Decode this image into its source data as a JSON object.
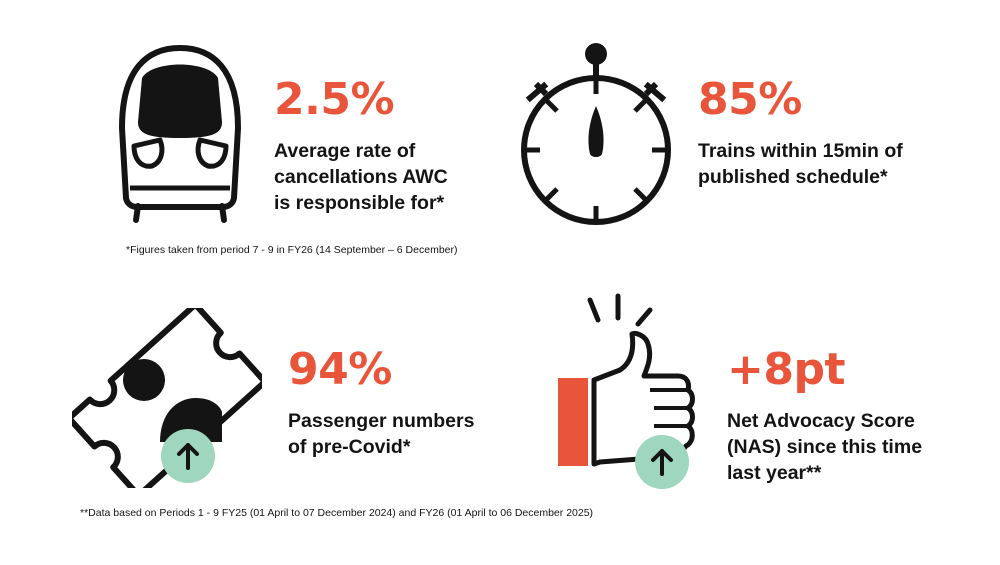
{
  "colors": {
    "accent": "#E8553A",
    "text": "#141414",
    "badge": "#9ED6C0"
  },
  "stats": [
    {
      "icon": "train-front-icon",
      "value": "2.5%",
      "lines": [
        "Average rate of",
        "cancellations AWC",
        "is responsible for*"
      ]
    },
    {
      "icon": "stopwatch-icon",
      "value": "85%",
      "lines": [
        "Trains within 15min of",
        "published schedule*"
      ]
    },
    {
      "icon": "ticket-icon",
      "value": "94%",
      "lines": [
        "Passenger numbers",
        "of pre-Covid*"
      ]
    },
    {
      "icon": "thumbs-up-icon",
      "value": "+8pt",
      "lines": [
        "Net Advocacy Score",
        "(NAS) since this time",
        "last year**"
      ]
    }
  ],
  "footnotes": {
    "first": "*Figures taken from period 7 - 9 in FY26 (14 September – 6 December)",
    "second": "**Data based on Periods 1 - 9 FY25 (01 April to 07 December 2024) and FY26 (01 April to 06 December 2025)"
  }
}
